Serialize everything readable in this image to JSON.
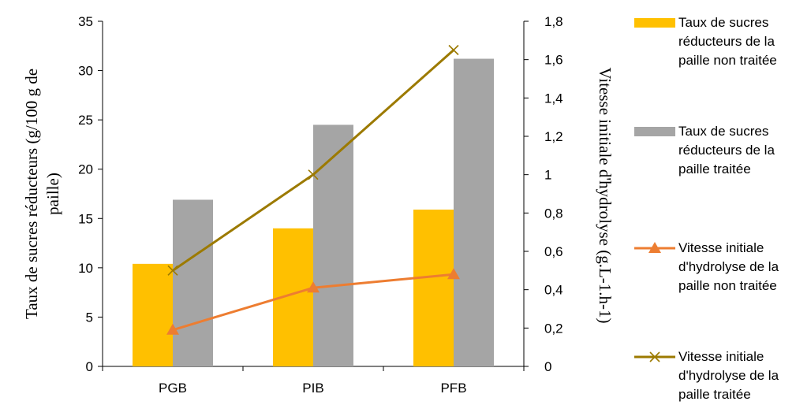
{
  "chart_data": {
    "type": "bar",
    "categories": [
      "PGB",
      "PIB",
      "PFB"
    ],
    "bar_series": [
      {
        "name": "Taux de sucres réducteurs de la paille non traitée",
        "values": [
          10.4,
          14.0,
          15.9
        ],
        "color": "#FFC000"
      },
      {
        "name": "Taux de sucres réducteurs de la paille traitée",
        "values": [
          16.9,
          24.5,
          31.2
        ],
        "color": "#A5A5A5"
      }
    ],
    "line_series": [
      {
        "name": "Vitesse initiale d'hydrolyse de la paille non traitée",
        "values": [
          0.19,
          0.41,
          0.48
        ],
        "color": "#ED7D31",
        "marker": "triangle"
      },
      {
        "name": "Vitesse initiale d'hydrolyse de la paille traitée",
        "values": [
          0.5,
          1.0,
          1.65
        ],
        "color": "#9C7A00",
        "marker": "x"
      }
    ],
    "ylabel_left": "Taux de sucres réducteurs (g/100 g de paille)",
    "ylabel_right": "Vitesse initiale d'hydrolyse (g.L-1.h-1)",
    "ylim_left": [
      0,
      35
    ],
    "ylim_right": [
      0,
      1.8
    ],
    "yticks_left": [
      "0",
      "5",
      "10",
      "15",
      "20",
      "25",
      "30",
      "35"
    ],
    "yticks_right": [
      "0",
      "0,2",
      "0,4",
      "0,6",
      "0,8",
      "1",
      "1,2",
      "1,4",
      "1,6",
      "1,8"
    ],
    "legend_lines": [
      [
        "Taux de sucres",
        "réducteurs de la",
        "paille non traitée"
      ],
      [
        "Taux de sucres",
        "réducteurs de la",
        "paille traitée"
      ],
      [
        "Vitesse initiale",
        "d'hydrolyse de la",
        "paille non traitée"
      ],
      [
        "Vitesse initiale",
        "d'hydrolyse de la",
        "paille traitée"
      ]
    ],
    "legend_position": "right",
    "grid": false
  }
}
